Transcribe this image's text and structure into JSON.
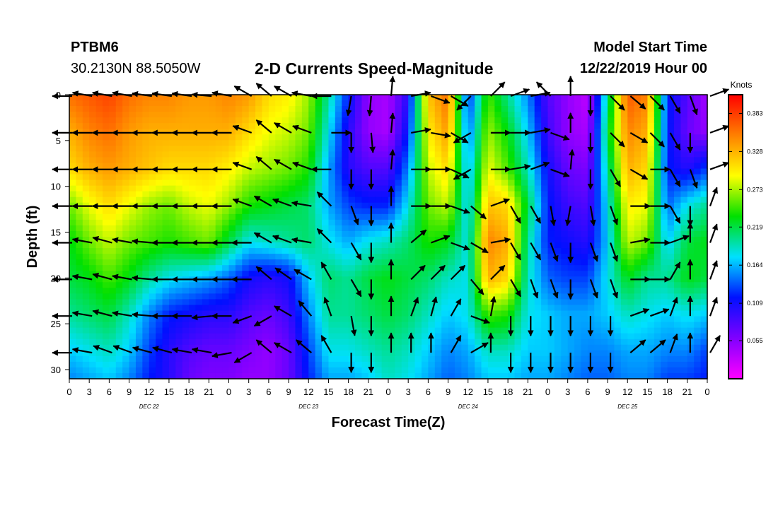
{
  "header": {
    "station": "PTBM6",
    "coords": "30.2130N 88.5050W",
    "title": "2-D Currents Speed-Magnitude",
    "model_start_label": "Model Start Time",
    "model_start_value": "12/22/2019 Hour 00"
  },
  "chart_data": {
    "type": "heatmap",
    "title": "2-D Currents Speed-Magnitude",
    "xlabel": "Forecast Time(Z)",
    "ylabel": "Depth (ft)",
    "x_range_hours": [
      0,
      96
    ],
    "y_range_ft": [
      0,
      31
    ],
    "x_tick_labels": [
      "0",
      "3",
      "6",
      "9",
      "12",
      "15",
      "18",
      "21",
      "0",
      "3",
      "6",
      "9",
      "12",
      "15",
      "18",
      "21",
      "0",
      "3",
      "6",
      "9",
      "12",
      "15",
      "18",
      "21",
      "0",
      "3",
      "6",
      "9",
      "12",
      "15",
      "18",
      "21",
      "0"
    ],
    "y_ticks": [
      0,
      5,
      10,
      15,
      20,
      25,
      30
    ],
    "day_labels": [
      {
        "label": "DEC 22",
        "hour": 12
      },
      {
        "label": "DEC 23",
        "hour": 36
      },
      {
        "label": "DEC 24",
        "hour": 60
      },
      {
        "label": "DEC 25",
        "hour": 84
      }
    ],
    "colorbar": {
      "unit": "Knots",
      "ticks": [
        0.055,
        0.109,
        0.164,
        0.219,
        0.273,
        0.328,
        0.383
      ],
      "range": [
        0.0,
        0.41
      ],
      "colors": [
        "#ff00ff",
        "#8000ff",
        "#0010ff",
        "#00e0ff",
        "#00e000",
        "#ffff00",
        "#ff8000",
        "#ff0000"
      ]
    },
    "speed_grid_hours": [
      0,
      3,
      6,
      9,
      12,
      15,
      18,
      21,
      24,
      27,
      30,
      33,
      36,
      39,
      42,
      45,
      48,
      51,
      54,
      57,
      60,
      63,
      66,
      69,
      72,
      75,
      78,
      81,
      84,
      87,
      90,
      93,
      96
    ],
    "speed_grid_depths_ft": [
      0,
      4,
      8,
      12,
      16,
      20,
      24,
      28,
      31
    ],
    "speed_grid": [
      [
        0.36,
        0.37,
        0.38,
        0.36,
        0.35,
        0.35,
        0.34,
        0.34,
        0.35,
        0.34,
        0.31,
        0.3,
        0.27,
        0.2,
        0.12,
        0.05,
        0.04,
        0.1,
        0.32,
        0.36,
        0.12,
        0.25,
        0.2,
        0.15,
        0.08,
        0.05,
        0.03,
        0.2,
        0.37,
        0.35,
        0.12,
        0.08,
        0.04
      ],
      [
        0.33,
        0.35,
        0.36,
        0.34,
        0.33,
        0.33,
        0.33,
        0.33,
        0.33,
        0.31,
        0.29,
        0.28,
        0.26,
        0.18,
        0.1,
        0.05,
        0.04,
        0.12,
        0.3,
        0.34,
        0.14,
        0.27,
        0.23,
        0.17,
        0.09,
        0.05,
        0.04,
        0.22,
        0.35,
        0.33,
        0.12,
        0.07,
        0.05
      ],
      [
        0.31,
        0.33,
        0.34,
        0.33,
        0.32,
        0.31,
        0.31,
        0.31,
        0.3,
        0.28,
        0.27,
        0.26,
        0.24,
        0.16,
        0.1,
        0.08,
        0.08,
        0.15,
        0.28,
        0.31,
        0.16,
        0.29,
        0.25,
        0.19,
        0.11,
        0.07,
        0.06,
        0.2,
        0.33,
        0.31,
        0.12,
        0.1,
        0.13
      ],
      [
        0.26,
        0.29,
        0.31,
        0.29,
        0.27,
        0.26,
        0.28,
        0.29,
        0.27,
        0.24,
        0.23,
        0.22,
        0.21,
        0.16,
        0.13,
        0.12,
        0.12,
        0.18,
        0.26,
        0.28,
        0.17,
        0.32,
        0.31,
        0.22,
        0.12,
        0.09,
        0.08,
        0.18,
        0.3,
        0.29,
        0.14,
        0.18,
        0.2
      ],
      [
        0.23,
        0.26,
        0.28,
        0.26,
        0.25,
        0.24,
        0.25,
        0.26,
        0.22,
        0.18,
        0.19,
        0.2,
        0.21,
        0.18,
        0.16,
        0.18,
        0.19,
        0.21,
        0.24,
        0.23,
        0.18,
        0.35,
        0.33,
        0.2,
        0.12,
        0.11,
        0.1,
        0.17,
        0.28,
        0.26,
        0.17,
        0.22,
        0.23
      ],
      [
        0.22,
        0.23,
        0.25,
        0.23,
        0.2,
        0.18,
        0.17,
        0.16,
        0.14,
        0.11,
        0.1,
        0.11,
        0.17,
        0.21,
        0.2,
        0.22,
        0.23,
        0.22,
        0.21,
        0.19,
        0.18,
        0.33,
        0.31,
        0.19,
        0.14,
        0.13,
        0.13,
        0.18,
        0.23,
        0.2,
        0.2,
        0.23,
        0.22
      ],
      [
        0.2,
        0.21,
        0.22,
        0.19,
        0.15,
        0.12,
        0.11,
        0.1,
        0.1,
        0.08,
        0.07,
        0.09,
        0.15,
        0.2,
        0.2,
        0.21,
        0.22,
        0.21,
        0.19,
        0.17,
        0.18,
        0.25,
        0.24,
        0.18,
        0.17,
        0.16,
        0.16,
        0.17,
        0.19,
        0.18,
        0.17,
        0.18,
        0.17
      ],
      [
        0.17,
        0.18,
        0.19,
        0.17,
        0.13,
        0.1,
        0.08,
        0.07,
        0.07,
        0.06,
        0.05,
        0.07,
        0.13,
        0.18,
        0.18,
        0.19,
        0.2,
        0.19,
        0.17,
        0.15,
        0.16,
        0.19,
        0.19,
        0.17,
        0.17,
        0.16,
        0.15,
        0.15,
        0.16,
        0.16,
        0.15,
        0.15,
        0.13
      ],
      [
        0.15,
        0.16,
        0.17,
        0.15,
        0.12,
        0.1,
        0.07,
        0.06,
        0.06,
        0.05,
        0.05,
        0.07,
        0.12,
        0.16,
        0.16,
        0.17,
        0.19,
        0.18,
        0.16,
        0.14,
        0.15,
        0.17,
        0.17,
        0.16,
        0.16,
        0.15,
        0.14,
        0.14,
        0.15,
        0.15,
        0.13,
        0.13,
        0.12
      ]
    ],
    "vector_hours": [
      0,
      3,
      6,
      9,
      12,
      15,
      18,
      21,
      24,
      27,
      30,
      33,
      36,
      39,
      42,
      45,
      48,
      51,
      54,
      57,
      60,
      63,
      66,
      69,
      72,
      75,
      78,
      81,
      84,
      87,
      90,
      93,
      96
    ],
    "vector_depths_ft": [
      0,
      4,
      8,
      12,
      16,
      20,
      24,
      28
    ],
    "vector_dirs_deg": [
      [
        180,
        170,
        170,
        170,
        172,
        172,
        172,
        175,
        170,
        150,
        140,
        150,
        170,
        180,
        260,
        265,
        85,
        10,
        340,
        330,
        225,
        45,
        20,
        10,
        135,
        90,
        270,
        315,
        320,
        315,
        300,
        290,
        20
      ],
      [
        180,
        180,
        180,
        180,
        180,
        180,
        180,
        180,
        180,
        160,
        140,
        150,
        160,
        0,
        270,
        275,
        85,
        10,
        350,
        330,
        210,
        0,
        0,
        10,
        340,
        90,
        270,
        315,
        330,
        315,
        300,
        270,
        20
      ],
      [
        180,
        180,
        180,
        180,
        180,
        180,
        180,
        180,
        180,
        160,
        140,
        150,
        160,
        180,
        270,
        270,
        85,
        0,
        0,
        335,
        210,
        0,
        10,
        20,
        340,
        85,
        270,
        300,
        330,
        0,
        300,
        290,
        20
      ],
      [
        180,
        180,
        180,
        180,
        180,
        180,
        180,
        180,
        180,
        160,
        150,
        160,
        170,
        135,
        290,
        270,
        90,
        0,
        0,
        340,
        320,
        20,
        300,
        300,
        280,
        260,
        280,
        290,
        0,
        0,
        300,
        270,
        70
      ],
      [
        180,
        170,
        165,
        170,
        175,
        180,
        180,
        180,
        180,
        180,
        150,
        160,
        170,
        135,
        300,
        270,
        90,
        40,
        20,
        340,
        330,
        10,
        300,
        300,
        290,
        270,
        290,
        290,
        10,
        0,
        20,
        90,
        70
      ],
      [
        180,
        170,
        165,
        170,
        175,
        180,
        180,
        180,
        180,
        180,
        140,
        145,
        150,
        120,
        300,
        270,
        90,
        45,
        45,
        45,
        310,
        45,
        300,
        290,
        290,
        270,
        290,
        290,
        0,
        0,
        60,
        90,
        70
      ],
      [
        180,
        170,
        165,
        170,
        175,
        180,
        180,
        185,
        180,
        200,
        210,
        150,
        130,
        110,
        280,
        270,
        90,
        70,
        75,
        60,
        340,
        80,
        270,
        270,
        270,
        270,
        270,
        270,
        20,
        20,
        70,
        90,
        70
      ],
      [
        180,
        170,
        160,
        160,
        165,
        165,
        170,
        170,
        190,
        210,
        140,
        150,
        140,
        120,
        270,
        270,
        90,
        90,
        90,
        60,
        30,
        90,
        270,
        270,
        270,
        270,
        270,
        270,
        40,
        40,
        70,
        90,
        60
      ]
    ]
  }
}
